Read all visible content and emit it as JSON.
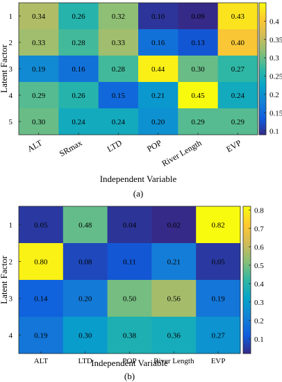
{
  "chart_data": [
    {
      "type": "heatmap",
      "xlabel": "Independent Variable",
      "ylabel": "Latent Factor",
      "caption": "(a)",
      "x_categories": [
        "ALT",
        "SRmax",
        "LTD",
        "POP",
        "River Length",
        "EVP"
      ],
      "y_categories": [
        "1",
        "2",
        "3",
        "4",
        "5"
      ],
      "values": [
        [
          0.34,
          0.26,
          0.32,
          0.1,
          0.09,
          0.43
        ],
        [
          0.33,
          0.28,
          0.33,
          0.16,
          0.13,
          0.4
        ],
        [
          0.19,
          0.16,
          0.28,
          0.44,
          0.3,
          0.27
        ],
        [
          0.29,
          0.26,
          0.15,
          0.21,
          0.45,
          0.24
        ],
        [
          0.3,
          0.24,
          0.24,
          0.2,
          0.29,
          0.29
        ]
      ],
      "value_labels": [
        [
          "0.34",
          "0.26",
          "0.32",
          "0.10",
          "0.09",
          "0.43"
        ],
        [
          "0.33",
          "0.28",
          "0.33",
          "0.16",
          "0.13",
          "0.40"
        ],
        [
          "0.19",
          "0.16",
          "0.28",
          "0.44",
          "0.30",
          "0.27"
        ],
        [
          "0.29",
          "0.26",
          "0.15",
          "0.21",
          "0.45",
          "0.24"
        ],
        [
          "0.30",
          "0.24",
          "0.24",
          "0.20",
          "0.29",
          "0.29"
        ]
      ],
      "colorbar": {
        "range": [
          0.09,
          0.45
        ],
        "ticks": [
          0.1,
          0.15,
          0.2,
          0.25,
          0.3,
          0.35,
          0.4
        ],
        "tick_labels": [
          "0.1",
          "0.15",
          "0.2",
          "0.25",
          "0.3",
          "0.35",
          "0.4"
        ],
        "colormap": "parula"
      },
      "x_tick_rotation": "rotated"
    },
    {
      "type": "heatmap",
      "xlabel": "Independent Variable",
      "ylabel": "Latent Factor",
      "caption": "(b)",
      "x_categories": [
        "ALT",
        "LTD",
        "POP",
        "River Length",
        "EVP"
      ],
      "y_categories": [
        "1",
        "2",
        "3",
        "4"
      ],
      "values": [
        [
          0.05,
          0.48,
          0.04,
          0.02,
          0.82
        ],
        [
          0.8,
          0.08,
          0.11,
          0.21,
          0.05
        ],
        [
          0.14,
          0.2,
          0.5,
          0.56,
          0.19
        ],
        [
          0.19,
          0.3,
          0.38,
          0.36,
          0.27
        ]
      ],
      "value_labels": [
        [
          "0.05",
          "0.48",
          "0.04",
          "0.02",
          "0.82"
        ],
        [
          "0.80",
          "0.08",
          "0.11",
          "0.21",
          "0.05"
        ],
        [
          "0.14",
          "0.20",
          "0.50",
          "0.56",
          "0.19"
        ],
        [
          "0.19",
          "0.30",
          "0.38",
          "0.36",
          "0.27"
        ]
      ],
      "colorbar": {
        "range": [
          0.02,
          0.82
        ],
        "ticks": [
          0.1,
          0.2,
          0.3,
          0.4,
          0.5,
          0.6,
          0.7,
          0.8
        ],
        "tick_labels": [
          "0.1",
          "0.2",
          "0.3",
          "0.4",
          "0.5",
          "0.6",
          "0.7",
          "0.8"
        ],
        "colormap": "parula"
      },
      "x_tick_rotation": "horizontal"
    }
  ]
}
